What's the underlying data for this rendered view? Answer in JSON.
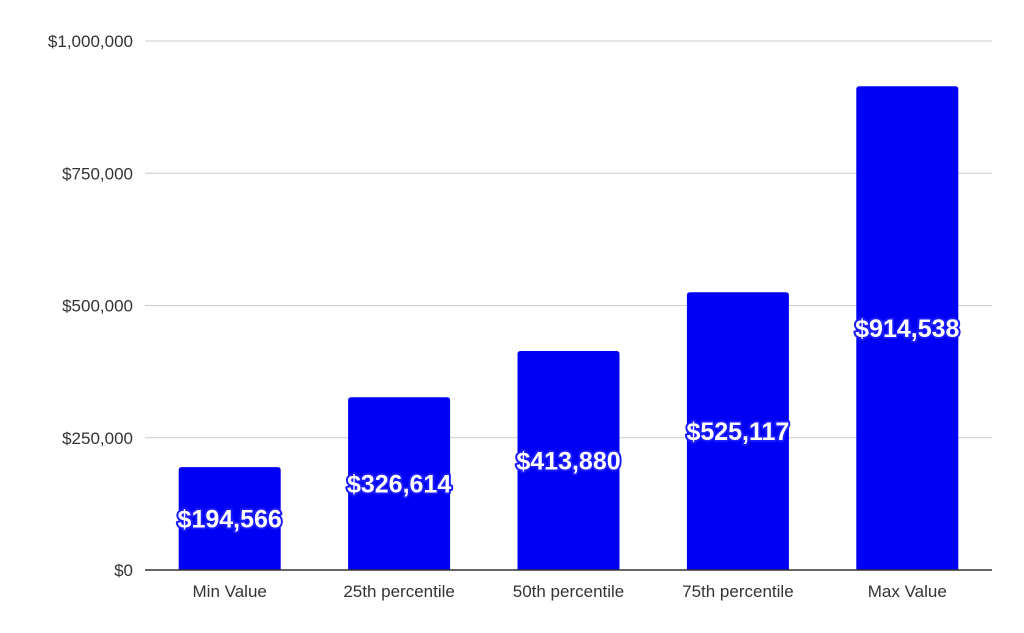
{
  "chart_data": {
    "type": "bar",
    "categories": [
      "Min Value",
      "25th percentile",
      "50th percentile",
      "75th percentile",
      "Max Value"
    ],
    "values": [
      194566,
      326614,
      413880,
      525117,
      914538
    ],
    "data_labels": [
      "$194,566",
      "$326,614",
      "$413,880",
      "$525,117",
      "$914,538"
    ],
    "title": "",
    "xlabel": "",
    "ylabel": "",
    "ylim": [
      0,
      1000000
    ],
    "yticks": [
      0,
      250000,
      500000,
      750000,
      1000000
    ],
    "ytick_labels": [
      "$0",
      "$250,000",
      "$500,000",
      "$750,000",
      "$1,000,000"
    ],
    "grid": true,
    "legend": "none"
  },
  "colors": {
    "bar": "#0000f5",
    "label_fill": "#ffffff",
    "label_stroke": "#1a1aff",
    "grid": "#cccccc",
    "axis": "#333333"
  }
}
